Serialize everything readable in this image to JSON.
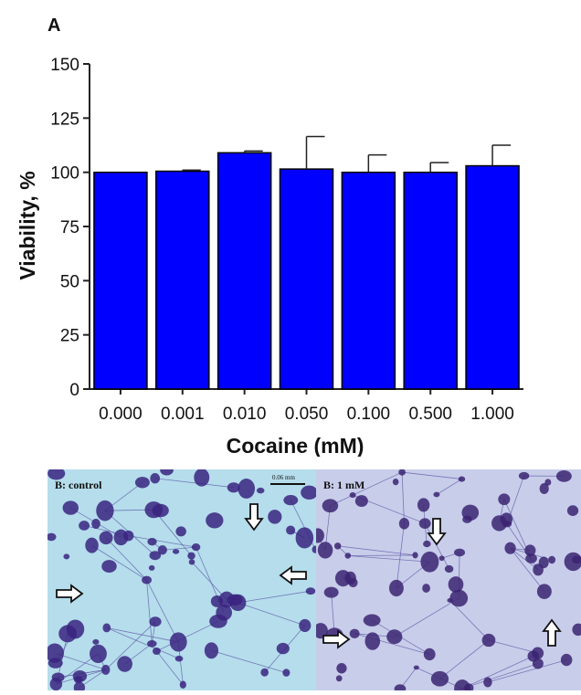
{
  "chart_data": {
    "type": "bar",
    "panel_label": "A",
    "categories": [
      "0.000",
      "0.001",
      "0.010",
      "0.050",
      "0.100",
      "0.500",
      "1.000"
    ],
    "values": [
      100,
      100.5,
      109,
      101.5,
      100,
      100,
      103
    ],
    "error": [
      0,
      0.5,
      0.8,
      15,
      8,
      4.5,
      9.5
    ],
    "xlabel": "Cocaine (mM)",
    "ylabel": "Viability, %",
    "ylim": [
      0,
      150
    ],
    "yticks": [
      0,
      25,
      50,
      75,
      100,
      125,
      150
    ],
    "grid": false,
    "bar_color": "#0000ff",
    "bar_edge_color": "#000000"
  },
  "micrographs": [
    {
      "label": "B: control",
      "scale_bar": "0.06 mm",
      "background": "#b5ddec",
      "cell_color": "#3a2580"
    },
    {
      "label": "B: 1 mM",
      "background": "#c8cdea",
      "cell_color": "#3b2472"
    }
  ]
}
